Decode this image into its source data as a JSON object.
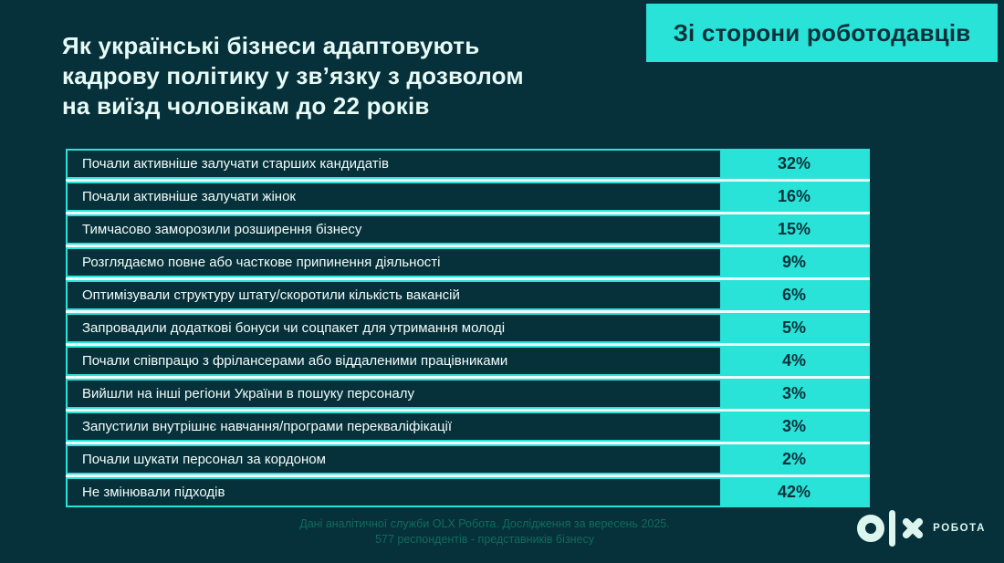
{
  "colors": {
    "background": "#06313a",
    "accent_cyan": "#2ae3d8",
    "row_gap_white": "#effdfb",
    "title_text": "#e7faf5",
    "dark_text": "#07313a",
    "footer_text": "#106b60",
    "logo_mint": "#dcf5ee"
  },
  "header": {
    "title_lines": [
      "Як українські бізнеси адаптовують",
      "кадрову політику у зв’язку з дозволом",
      "на виїзд чоловікам до 22 років"
    ],
    "badge": "Зі сторони роботодавців"
  },
  "table": {
    "rows": [
      {
        "label": "Почали активніше залучати старших кандидатів",
        "value": "32%"
      },
      {
        "label": "Почали активніше залучати жінок",
        "value": "16%"
      },
      {
        "label": "Тимчасово заморозили розширення бізнесу",
        "value": "15%"
      },
      {
        "label": "Розглядаємо повне або часткове припинення діяльності",
        "value": "9%"
      },
      {
        "label": "Оптимізували структуру штату/скоротили кількість вакансій",
        "value": "6%"
      },
      {
        "label": "Запровадили додаткові бонуси чи соцпакет для утримання молоді",
        "value": "5%"
      },
      {
        "label": "Почали співпрацю з фрілансерами або віддаленими працівниками",
        "value": "4%"
      },
      {
        "label": "Вийшли на інші регіони України в пошуку персоналу",
        "value": "3%"
      },
      {
        "label": "Запустили внутрішнє навчання/програми перекваліфікації",
        "value": "3%"
      },
      {
        "label": "Почали шукати персонал за кордоном",
        "value": "2%"
      },
      {
        "label": "Не змінювали підходів",
        "value": "42%"
      }
    ]
  },
  "footer": {
    "line1": "Дані аналітичної служби OLX Робота. Дослідження за вересень 2025.",
    "line2": "577 респондентів - представників бізнесу"
  },
  "logo": {
    "text": "РОБОТА"
  },
  "chart_data": {
    "type": "table",
    "title": "Як українські бізнеси адаптовують кадрову політику у зв’язку з дозволом на виїзд чоловікам до 22 років",
    "subtitle": "Зі сторони роботодавців",
    "categories": [
      "Почали активніше залучати старших кандидатів",
      "Почали активніше залучати жінок",
      "Тимчасово заморозили розширення бізнесу",
      "Розглядаємо повне або часткове припинення діяльності",
      "Оптимізували структуру штату/скоротили кількість вакансій",
      "Запровадили додаткові бонуси чи соцпакет для утримання молоді",
      "Почали співпрацю з фрілансерами або віддаленими працівниками",
      "Вийшли на інші регіони України в пошуку персоналу",
      "Запустили внутрішнє навчання/програми перекваліфікації",
      "Почали шукати персонал за кордоном",
      "Не змінювали підходів"
    ],
    "values": [
      32,
      16,
      15,
      9,
      6,
      5,
      4,
      3,
      3,
      2,
      42
    ],
    "unit": "%",
    "source": "Дані аналітичної служби OLX Робота. Дослідження за вересень 2025. 577 респондентів - представників бізнесу"
  }
}
